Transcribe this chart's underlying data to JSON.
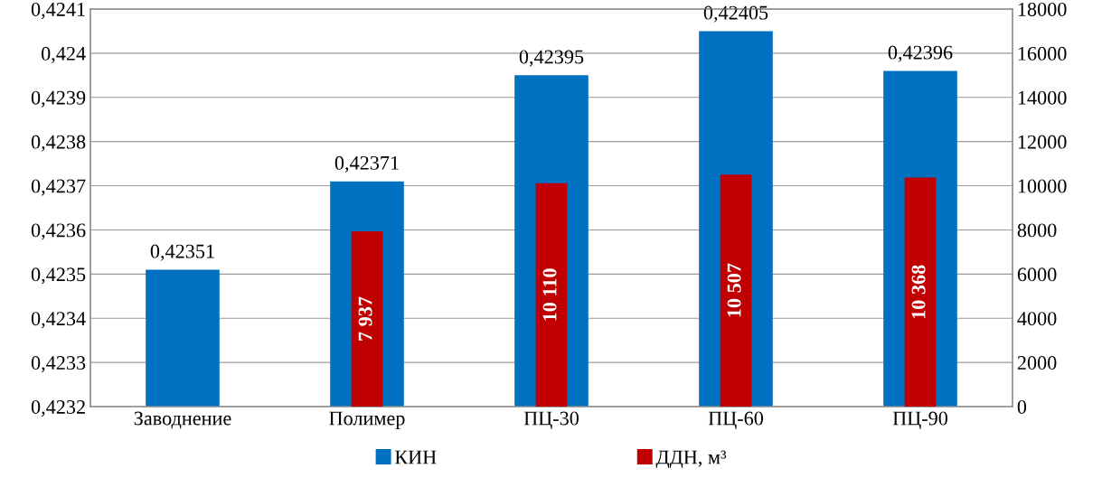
{
  "chart_data": {
    "type": "bar",
    "categories": [
      "Заводнение",
      "Полимер",
      "ПЦ-30",
      "ПЦ-60",
      "ПЦ-90"
    ],
    "series": [
      {
        "name": "КИН",
        "color": "#0070c0",
        "values": [
          0.42351,
          0.42371,
          0.42395,
          0.42405,
          0.42396
        ],
        "value_labels": [
          "0,42351",
          "0,42371",
          "0,42395",
          "0,42405",
          "0,42396"
        ]
      },
      {
        "name": "ДДН, м³",
        "color": "#c00000",
        "axis": "y2",
        "values": [
          null,
          7937,
          10110,
          10507,
          10368
        ],
        "value_labels": [
          null,
          "7 937",
          "10 110",
          "10 507",
          "10 368"
        ]
      }
    ],
    "ylim": [
      0.4232,
      0.4241
    ],
    "yticks": [
      {
        "value": 0.4232,
        "label": "0,4232"
      },
      {
        "value": 0.4233,
        "label": "0,4233"
      },
      {
        "value": 0.4234,
        "label": "0,4234"
      },
      {
        "value": 0.4235,
        "label": "0,4235"
      },
      {
        "value": 0.4236,
        "label": "0,4236"
      },
      {
        "value": 0.4237,
        "label": "0,4237"
      },
      {
        "value": 0.4238,
        "label": "0,4238"
      },
      {
        "value": 0.4239,
        "label": "0,4239"
      },
      {
        "value": 0.424,
        "label": "0,424"
      },
      {
        "value": 0.4241,
        "label": "0,4241"
      }
    ],
    "y2lim": [
      0,
      18000
    ],
    "y2ticks": [
      0,
      2000,
      4000,
      6000,
      8000,
      10000,
      12000,
      14000,
      16000,
      18000
    ],
    "grid": "y",
    "legend": "bottom"
  }
}
